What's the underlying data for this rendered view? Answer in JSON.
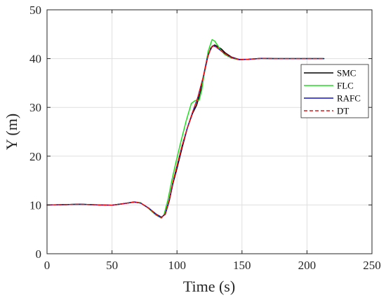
{
  "chart_data": {
    "type": "line",
    "xlabel": "Time (s)",
    "ylabel": "Y (m)",
    "xlim": [
      0,
      250
    ],
    "ylim": [
      0,
      50
    ],
    "xticks": [
      0,
      50,
      100,
      150,
      200,
      250
    ],
    "yticks": [
      0,
      10,
      20,
      30,
      40,
      50
    ],
    "grid": true,
    "legend_position": "right",
    "series": [
      {
        "name": "SMC",
        "color": "#000000",
        "style": "solid",
        "x": [
          0,
          10,
          25,
          40,
          50,
          60,
          67,
          72,
          78,
          84,
          88,
          91,
          94,
          97,
          100,
          104,
          108,
          112,
          115,
          118,
          121,
          124,
          127,
          129,
          131,
          134,
          137,
          142,
          148,
          155,
          165,
          175,
          190,
          213
        ],
        "y": [
          10.0,
          10.05,
          10.15,
          10.0,
          9.95,
          10.3,
          10.6,
          10.4,
          9.4,
          8.1,
          7.5,
          8.1,
          10.8,
          14.5,
          17.5,
          21.8,
          25.8,
          28.8,
          30.4,
          33.0,
          37.0,
          40.8,
          42.5,
          42.8,
          42.5,
          42.0,
          41.2,
          40.3,
          39.8,
          39.85,
          40.05,
          40.0,
          40.0,
          40.0
        ]
      },
      {
        "name": "FLC",
        "color": "#22dd22",
        "style": "solid",
        "x": [
          0,
          10,
          25,
          40,
          50,
          60,
          67,
          72,
          78,
          84,
          88,
          90,
          93,
          96,
          99,
          103,
          107,
          111,
          114,
          117,
          119,
          121,
          124,
          127,
          129,
          131,
          134,
          137,
          142,
          148,
          155,
          165,
          175,
          190,
          213
        ],
        "y": [
          10.0,
          10.05,
          10.15,
          10.0,
          9.95,
          10.3,
          10.65,
          10.45,
          9.3,
          7.9,
          7.3,
          8.0,
          11.0,
          15.0,
          18.5,
          23.0,
          27.2,
          30.8,
          31.4,
          31.5,
          33.5,
          37.0,
          41.5,
          43.9,
          43.6,
          42.8,
          41.6,
          40.8,
          40.1,
          39.75,
          39.85,
          40.05,
          40.0,
          40.0,
          40.0
        ]
      },
      {
        "name": "RAFC",
        "color": "#1010cc",
        "style": "solid",
        "x": [
          0,
          10,
          25,
          40,
          50,
          60,
          67,
          72,
          78,
          84,
          88,
          91,
          94,
          97,
          100,
          104,
          108,
          112,
          116,
          120,
          123,
          126,
          128,
          130,
          133,
          137,
          142,
          148,
          155,
          165,
          175,
          190,
          213
        ],
        "y": [
          10.0,
          10.05,
          10.15,
          10.0,
          9.95,
          10.3,
          10.6,
          10.4,
          9.4,
          8.0,
          7.4,
          8.2,
          11.0,
          14.8,
          18.0,
          22.2,
          25.8,
          29.0,
          32.0,
          36.0,
          39.8,
          42.2,
          42.6,
          42.4,
          41.8,
          41.0,
          40.2,
          39.8,
          39.85,
          40.05,
          40.0,
          40.0,
          40.0
        ]
      },
      {
        "name": "DT",
        "color": "#ee1111",
        "style": "dashed",
        "x": [
          0,
          10,
          25,
          40,
          50,
          60,
          67,
          72,
          78,
          84,
          88,
          91,
          94,
          97,
          100,
          104,
          108,
          112,
          116,
          120,
          123,
          126,
          128,
          130,
          133,
          137,
          142,
          148,
          155,
          165,
          175,
          190,
          213
        ],
        "y": [
          10.0,
          10.05,
          10.15,
          10.0,
          9.95,
          10.3,
          10.6,
          10.4,
          9.4,
          8.0,
          7.4,
          8.2,
          11.0,
          14.8,
          18.0,
          22.2,
          25.8,
          29.0,
          32.0,
          36.0,
          39.8,
          42.2,
          42.6,
          42.4,
          41.8,
          41.0,
          40.2,
          39.8,
          39.85,
          40.05,
          40.0,
          40.0,
          40.0
        ]
      }
    ]
  }
}
